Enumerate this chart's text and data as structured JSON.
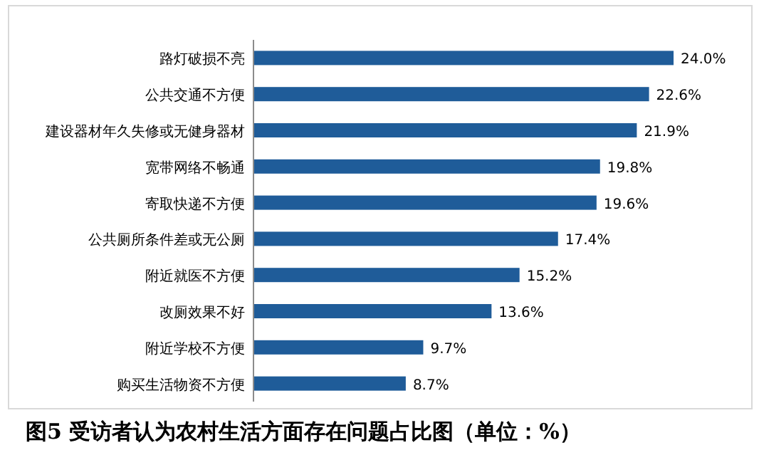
{
  "chart_data": {
    "type": "bar",
    "orientation": "horizontal",
    "title": "图5  受访者认为农村生活方面存在问题占比图（单位：%）",
    "categories": [
      "路灯破损不亮",
      "公共交通不方便",
      "建设器材年久失修或无健身器材",
      "宽带网络不畅通",
      "寄取快递不方便",
      "公共厕所条件差或无公厕",
      "附近就医不方便",
      "改厕效果不好",
      "附近学校不方便",
      "购买生活物资不方便"
    ],
    "values": [
      24.0,
      22.6,
      21.9,
      19.8,
      19.6,
      17.4,
      15.2,
      13.6,
      9.7,
      8.7
    ],
    "value_labels": [
      "24.0%",
      "22.6%",
      "21.9%",
      "19.8%",
      "19.6%",
      "17.4%",
      "15.2%",
      "13.6%",
      "9.7%",
      "8.7%"
    ],
    "color": "#1f5c99"
  }
}
